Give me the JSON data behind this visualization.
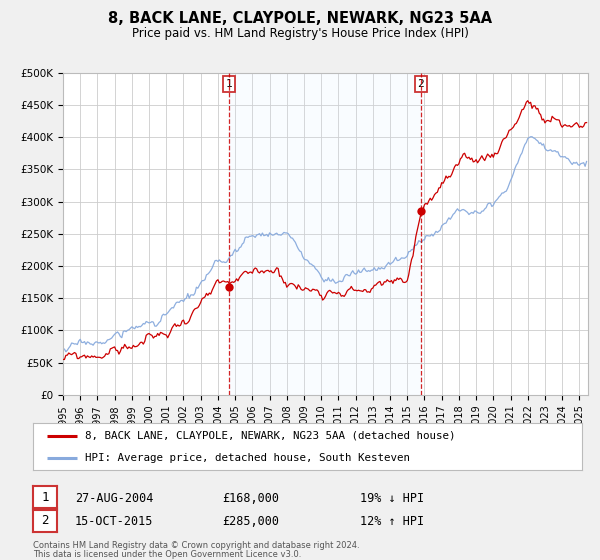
{
  "title": "8, BACK LANE, CLAYPOLE, NEWARK, NG23 5AA",
  "subtitle": "Price paid vs. HM Land Registry's House Price Index (HPI)",
  "ylim": [
    0,
    500000
  ],
  "xlim_start": 1995.0,
  "xlim_end": 2025.5,
  "yticks": [
    0,
    50000,
    100000,
    150000,
    200000,
    250000,
    300000,
    350000,
    400000,
    450000,
    500000
  ],
  "ytick_labels": [
    "£0",
    "£50K",
    "£100K",
    "£150K",
    "£200K",
    "£250K",
    "£300K",
    "£350K",
    "£400K",
    "£450K",
    "£500K"
  ],
  "xticks": [
    1995,
    1996,
    1997,
    1998,
    1999,
    2000,
    2001,
    2002,
    2003,
    2004,
    2005,
    2006,
    2007,
    2008,
    2009,
    2010,
    2011,
    2012,
    2013,
    2014,
    2015,
    2016,
    2017,
    2018,
    2019,
    2020,
    2021,
    2022,
    2023,
    2024,
    2025
  ],
  "bg_color": "#f0f0f0",
  "plot_bg_color": "#ffffff",
  "grid_color": "#cccccc",
  "red_line_color": "#cc0000",
  "blue_line_color": "#88aadd",
  "shade_color": "#ddeeff",
  "sale1_x": 2004.646,
  "sale1_y": 168000,
  "sale2_x": 2015.792,
  "sale2_y": 285000,
  "legend_line1": "8, BACK LANE, CLAYPOLE, NEWARK, NG23 5AA (detached house)",
  "legend_line2": "HPI: Average price, detached house, South Kesteven",
  "sale1_date": "27-AUG-2004",
  "sale1_price": "£168,000",
  "sale1_hpi": "19% ↓ HPI",
  "sale2_date": "15-OCT-2015",
  "sale2_price": "£285,000",
  "sale2_hpi": "12% ↑ HPI",
  "footnote1": "Contains HM Land Registry data © Crown copyright and database right 2024.",
  "footnote2": "This data is licensed under the Open Government Licence v3.0."
}
